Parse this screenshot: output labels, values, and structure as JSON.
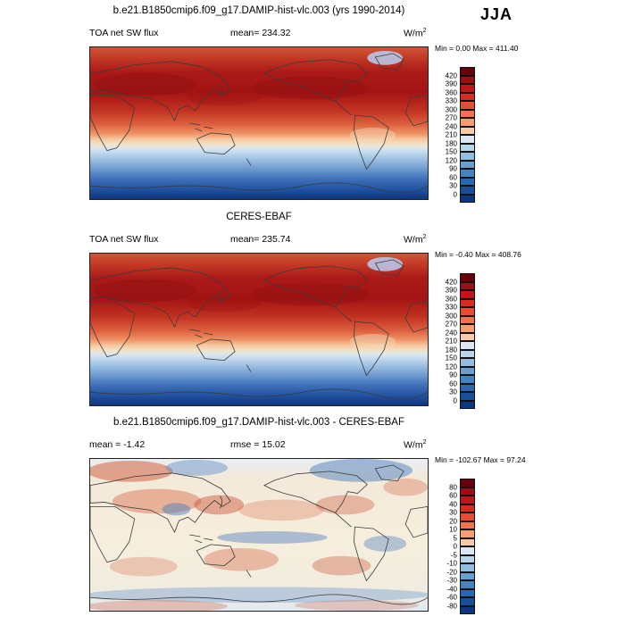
{
  "season": "JJA",
  "panels": [
    {
      "title": "b.e21.B1850cmip6.f09_g17.DAMIP-hist-vlc.003 (yrs 1990-2014)",
      "left_label": "TOA net SW flux",
      "center_label": "mean= 234.32",
      "units_base": "W/m",
      "units_exp": "2",
      "minmax": "Min =  0.00 Max = 411.40",
      "colorbar": {
        "ticks": [
          "420",
          "390",
          "360",
          "330",
          "300",
          "270",
          "240",
          "210",
          "180",
          "150",
          "120",
          "90",
          "60",
          "30",
          "0"
        ],
        "colors": [
          "#67000d",
          "#9e0d14",
          "#c0151a",
          "#d92b20",
          "#ea4c33",
          "#f4714d",
          "#f89c74",
          "#f8cba8",
          "#dbe8f3",
          "#b9d5ea",
          "#93bcdf",
          "#699fd0",
          "#4583bf",
          "#2a68ae",
          "#174f9b",
          "#0a3780"
        ]
      }
    },
    {
      "title": "CERES-EBAF",
      "left_label": "TOA net SW flux",
      "center_label": "mean= 235.74",
      "units_base": "W/m",
      "units_exp": "2",
      "minmax": "Min = -0.40 Max = 408.76",
      "colorbar": {
        "ticks": [
          "420",
          "390",
          "360",
          "330",
          "300",
          "270",
          "240",
          "210",
          "180",
          "150",
          "120",
          "90",
          "60",
          "30",
          "0"
        ],
        "colors": [
          "#67000d",
          "#9e0d14",
          "#c0151a",
          "#d92b20",
          "#ea4c33",
          "#f4714d",
          "#f89c74",
          "#f8cba8",
          "#dbe8f3",
          "#b9d5ea",
          "#93bcdf",
          "#699fd0",
          "#4583bf",
          "#2a68ae",
          "#174f9b",
          "#0a3780"
        ]
      }
    },
    {
      "title": "b.e21.B1850cmip6.f09_g17.DAMIP-hist-vlc.003 - CERES-EBAF",
      "left_label": "mean =  -1.42",
      "center_label": "rmse =  15.02",
      "units_base": "W/m",
      "units_exp": "2",
      "minmax": "Min = -102.67 Max =  97.24",
      "colorbar": {
        "ticks": [
          "80",
          "60",
          "40",
          "30",
          "20",
          "10",
          "5",
          "0",
          "-5",
          "-10",
          "-20",
          "-30",
          "-40",
          "-60",
          "-80"
        ],
        "colors": [
          "#67000d",
          "#9e0d14",
          "#c0151a",
          "#d92b20",
          "#ea4c33",
          "#f4714d",
          "#f89c74",
          "#f8cba8",
          "#dbe8f3",
          "#b9d5ea",
          "#93bcdf",
          "#699fd0",
          "#4583bf",
          "#2a68ae",
          "#174f9b",
          "#0a3780"
        ]
      }
    }
  ],
  "chart_data": [
    {
      "type": "heatmap",
      "map": "global latitude-longitude",
      "season": "JJA",
      "variable": "TOA net SW flux",
      "units": "W/m^2",
      "title": "b.e21.B1850cmip6.f09_g17.DAMIP-hist-vlc.003 (yrs 1990-2014)",
      "mean": 234.32,
      "min": 0.0,
      "max": 411.4,
      "contour_levels": [
        0,
        30,
        60,
        90,
        120,
        150,
        180,
        210,
        240,
        270,
        300,
        330,
        360,
        390,
        420
      ],
      "palette": "dark blue (low) to dark red (high)",
      "spatial_pattern": "high values (300-420) across northern-hemisphere subtropics and mid-latitudes, decreasing toward equatorial/southern oceans, near 0 over winter polar southern high latitudes"
    },
    {
      "type": "heatmap",
      "map": "global latitude-longitude",
      "season": "JJA",
      "variable": "TOA net SW flux",
      "units": "W/m^2",
      "title": "CERES-EBAF",
      "mean": 235.74,
      "min": -0.4,
      "max": 408.76,
      "contour_levels": [
        0,
        30,
        60,
        90,
        120,
        150,
        180,
        210,
        240,
        270,
        300,
        330,
        360,
        390,
        420
      ],
      "palette": "dark blue (low) to dark red (high)",
      "spatial_pattern": "observed pattern closely matching model: strong northern-hemisphere maximum, minimum over southern polar night region"
    },
    {
      "type": "heatmap",
      "map": "global latitude-longitude",
      "season": "JJA",
      "variable": "TOA net SW flux difference (model minus CERES-EBAF)",
      "units": "W/m^2",
      "title": "b.e21.B1850cmip6.f09_g17.DAMIP-hist-vlc.003 - CERES-EBAF",
      "mean": -1.42,
      "rmse": 15.02,
      "min": -102.67,
      "max": 97.24,
      "contour_levels": [
        -80,
        -60,
        -40,
        -30,
        -20,
        -10,
        -5,
        0,
        5,
        10,
        20,
        30,
        40,
        60,
        80
      ],
      "palette": "blue (negative) to red (positive)",
      "spatial_pattern": "mostly small differences (-5 to 10) with scattered positive biases over continents and subtropical oceans and negative biases over equatorial Pacific, North Atlantic and high latitudes"
    }
  ]
}
